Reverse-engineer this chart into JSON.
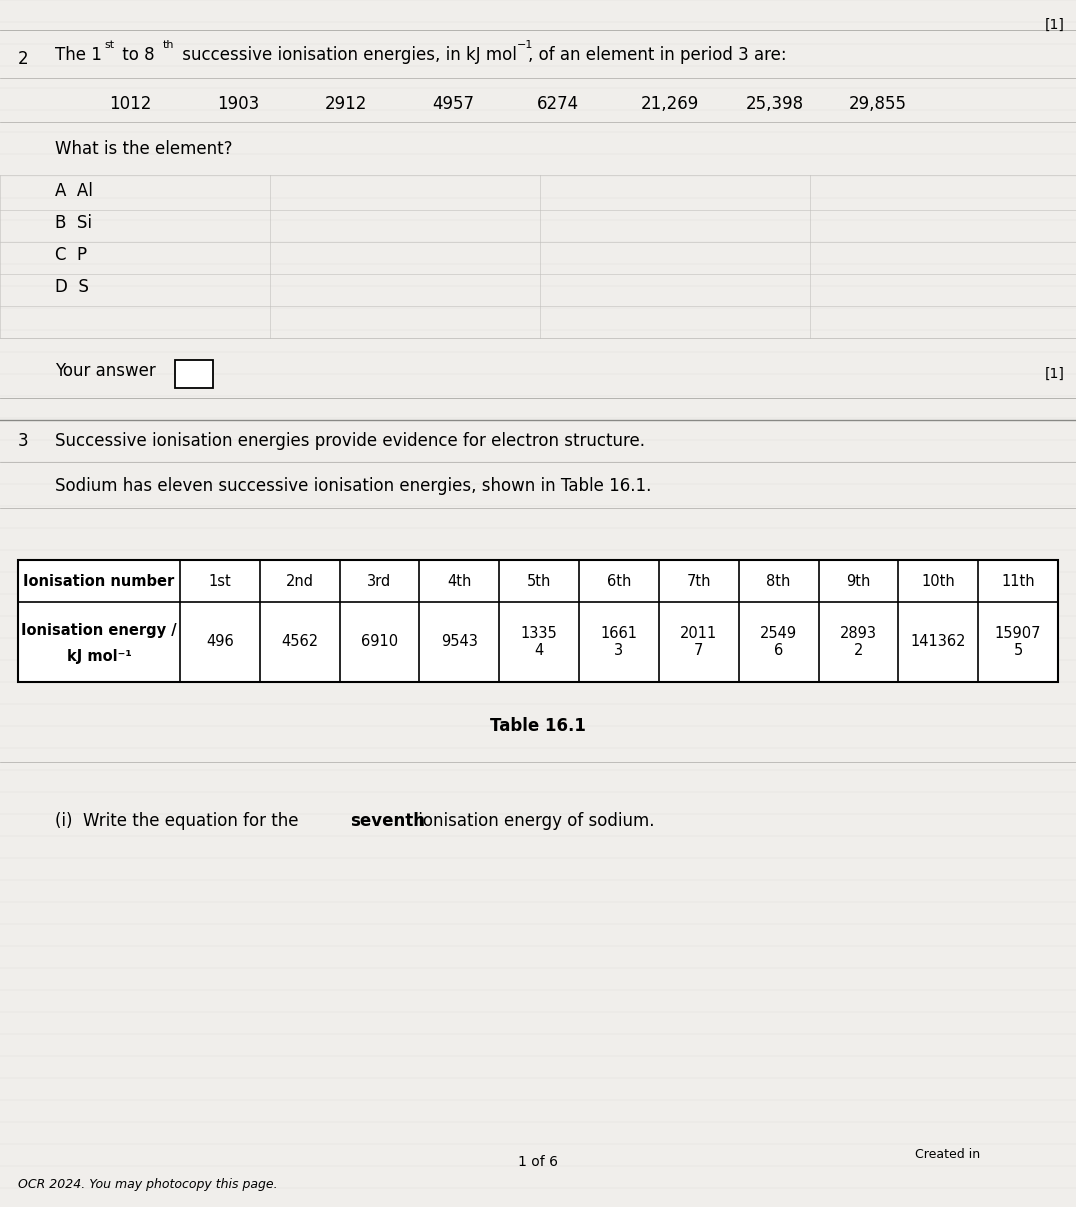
{
  "bg_color": "#c8c4be",
  "paper_color": "#f0eeeb",
  "q2_number": "2",
  "ionisation_values": [
    "1012",
    "1903",
    "2912",
    "4957",
    "6274",
    "21,269",
    "25,398",
    "29,855"
  ],
  "what_is": "What is the element?",
  "options": [
    "A  Al",
    "B  Si",
    "C  P",
    "D  S"
  ],
  "your_answer": "Your answer",
  "q3_number": "3",
  "q3_line1": "Successive ionisation energies provide evidence for electron structure.",
  "q3_line2": "Sodium has eleven successive ionisation energies, shown in Table 16.1.",
  "table_header_row": [
    "Ionisation number",
    "1st",
    "2nd",
    "3rd",
    "4th",
    "5th",
    "6th",
    "7th",
    "8th",
    "9th",
    "10th",
    "11th"
  ],
  "table_energy_display": [
    "496",
    "4562",
    "6910",
    "9543",
    "1335\n4",
    "1661\n3",
    "2011\n7",
    "2549\n6",
    "2893\n2",
    "141362",
    "15907\n5"
  ],
  "table_caption": "Table 16.1",
  "q3i_pre": "(i)  Write the equation for the ",
  "q3i_bold": "seventh",
  "q3i_post": " ionisation energy of sodium.",
  "footer_created": "Created in",
  "footer_page": "1 of 6",
  "footer_ocr": "OCR 2024. You may photocopy this page.",
  "top_right": "[1]",
  "mark1": "[1]"
}
